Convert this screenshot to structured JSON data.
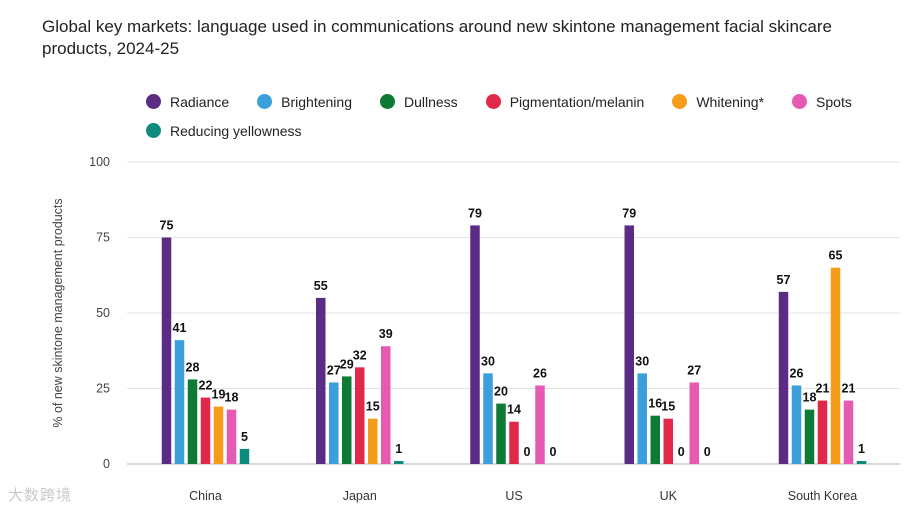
{
  "chart_data": {
    "type": "bar",
    "title": "Global key markets: language used in communications around new skintone management facial skincare products, 2024-25",
    "xlabel": "",
    "ylabel": "% of new skintone management products",
    "ylim": [
      0,
      100
    ],
    "yticks": [
      0,
      25,
      50,
      75,
      100
    ],
    "grid": true,
    "legend_position": "top",
    "categories": [
      "China",
      "Japan",
      "US",
      "UK",
      "South Korea"
    ],
    "series": [
      {
        "name": "Radiance",
        "color": "#5b2c83",
        "values": [
          75,
          55,
          79,
          79,
          57
        ]
      },
      {
        "name": "Brightening",
        "color": "#3a9fda",
        "values": [
          41,
          27,
          30,
          30,
          26
        ]
      },
      {
        "name": "Dullness",
        "color": "#0e7a35",
        "values": [
          28,
          29,
          20,
          16,
          18
        ]
      },
      {
        "name": "Pigmentation/melanin",
        "color": "#e0284a",
        "values": [
          22,
          32,
          14,
          15,
          21
        ]
      },
      {
        "name": "Whitening*",
        "color": "#f59c1a",
        "values": [
          19,
          15,
          0,
          0,
          65
        ]
      },
      {
        "name": "Spots",
        "color": "#e65ab4",
        "values": [
          18,
          39,
          26,
          27,
          21
        ]
      },
      {
        "name": "Reducing yellowness",
        "color": "#0e8a7e",
        "values": [
          5,
          1,
          0,
          0,
          1
        ]
      }
    ]
  },
  "watermark": "大数跨境"
}
